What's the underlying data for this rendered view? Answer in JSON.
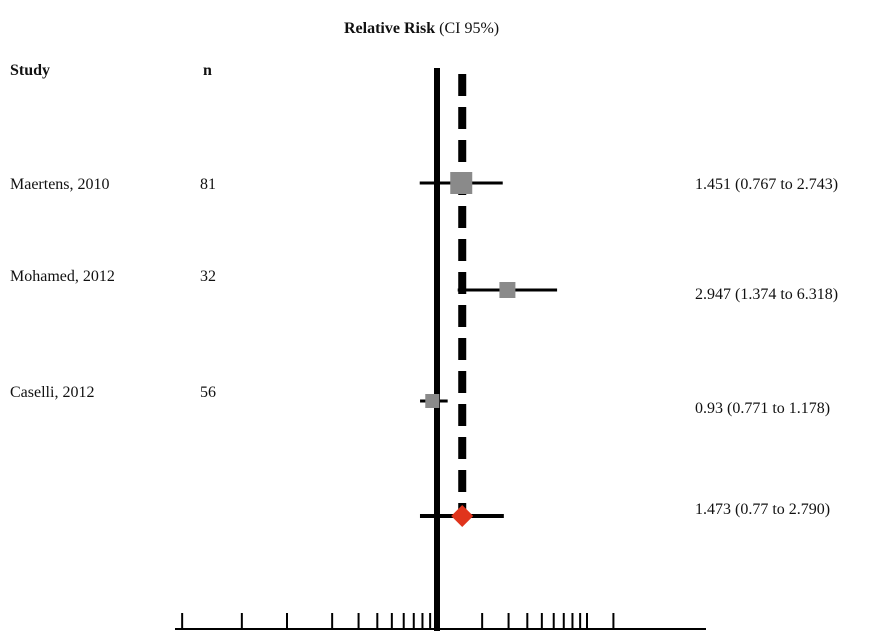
{
  "chart_data": {
    "type": "forest",
    "title_bold": "Relative Risk",
    "title_rest": "(CI 95%)",
    "columns": {
      "study": "Study",
      "n": "n"
    },
    "reference_line": 1,
    "pooled_line": 1.473,
    "x_scale": "log",
    "rows": [
      {
        "study": "Maertens, 2010",
        "n": "81",
        "rr": 1.451,
        "lo": 0.767,
        "hi": 2.743,
        "label": "1.451 (0.767 to 2.743)",
        "weight": "large"
      },
      {
        "study": "Mohamed, 2012",
        "n": "32",
        "rr": 2.947,
        "lo": 1.374,
        "hi": 6.318,
        "label": "2.947 (1.374 to 6.318)",
        "weight": "medium"
      },
      {
        "study": "Caselli, 2012",
        "n": "56",
        "rr": 0.93,
        "lo": 0.771,
        "hi": 1.178,
        "label": "0.93 (0.771 to 1.178)",
        "weight": "small"
      },
      {
        "study": "",
        "n": "",
        "rr": 1.473,
        "lo": 0.77,
        "hi": 2.79,
        "label": "1.473 (0.77 to 2.790)",
        "weight": "pooled"
      }
    ]
  },
  "colors": {
    "study_marker": "#8a8a8a",
    "pooled_marker": "#e0341c",
    "line": "#000000"
  }
}
